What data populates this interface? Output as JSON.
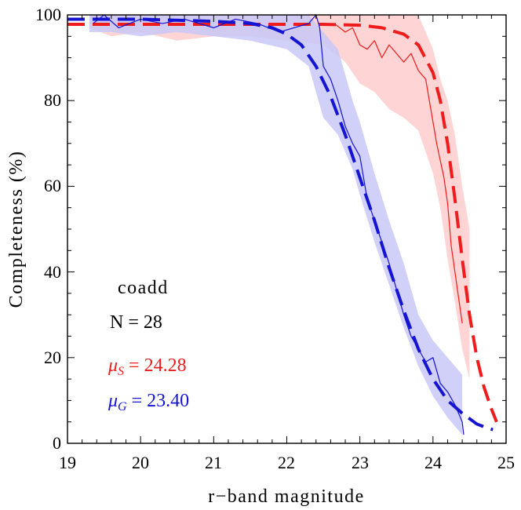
{
  "chart_data": {
    "type": "line",
    "title": "",
    "xlabel": "r−band magnitude",
    "ylabel": "Completeness (%)",
    "xlim": [
      19,
      25
    ],
    "ylim": [
      0,
      100
    ],
    "xticks": [
      "19",
      "20",
      "21",
      "22",
      "23",
      "24",
      "25"
    ],
    "yticks": [
      "0",
      "20",
      "40",
      "60",
      "80",
      "100"
    ],
    "annotations": {
      "sample": "coadd",
      "count": "N = 28",
      "mu_s_symbol": "μ",
      "mu_s_sub": "S",
      "mu_s_value": " = 24.28",
      "mu_g_symbol": "μ",
      "mu_g_sub": "G",
      "mu_g_value": " = 23.40"
    },
    "colors": {
      "stars": "#ee1c1c",
      "galaxies": "#1414d2",
      "stars_band": "#ffcccc",
      "galaxies_band": "#c8c8f8"
    },
    "series": [
      {
        "name": "stars (measured)",
        "style": "thin",
        "color": "#ee1c1c",
        "x": [
          22.65,
          22.8,
          22.9,
          23.0,
          23.1,
          23.2,
          23.3,
          23.4,
          23.5,
          23.6,
          23.7,
          23.8,
          23.9,
          24.0,
          24.05,
          24.1,
          24.15,
          24.2,
          24.25,
          24.3,
          24.35,
          24.4
        ],
        "y": [
          98,
          96,
          97,
          93,
          92,
          94,
          90,
          93,
          91,
          89,
          91,
          87,
          85,
          75,
          70,
          66,
          62,
          56,
          46,
          40,
          34,
          28
        ]
      },
      {
        "name": "stars band",
        "style": "band",
        "color": "#ffcccc",
        "x": [
          19.3,
          19.6,
          20.0,
          20.5,
          21.0,
          21.5,
          22.0,
          22.5,
          22.8,
          23.0,
          23.2,
          23.4,
          23.6,
          23.8,
          24.0,
          24.1,
          24.2,
          24.3,
          24.4,
          24.5
        ],
        "lower": [
          97,
          95,
          96,
          94,
          95,
          95,
          94,
          93,
          89,
          84,
          82,
          78,
          76,
          73,
          63,
          55,
          43,
          33,
          22,
          15
        ],
        "upper": [
          100,
          100,
          100,
          100,
          100,
          100,
          100,
          100,
          100,
          100,
          100,
          100,
          100,
          100,
          92,
          85,
          80,
          72,
          60,
          50
        ]
      },
      {
        "name": "stars fit",
        "style": "dashed",
        "color": "#ee1c1c",
        "x": [
          19.0,
          21.0,
          22.0,
          22.5,
          23.0,
          23.3,
          23.6,
          23.8,
          24.0,
          24.1,
          24.2,
          24.3,
          24.4,
          24.5,
          24.6,
          24.7,
          24.8,
          24.87
        ],
        "y": [
          97.8,
          97.8,
          97.8,
          97.8,
          97.6,
          97.0,
          95.5,
          93.0,
          86.5,
          80.0,
          70.0,
          57.0,
          43.0,
          30.0,
          20.0,
          13.0,
          8.0,
          5.0
        ]
      },
      {
        "name": "galaxies (measured)",
        "style": "thin",
        "color": "#1414d2",
        "x": [
          19.35,
          19.5,
          19.7,
          20.0,
          20.3,
          20.6,
          21.0,
          21.3,
          21.6,
          21.9,
          22.1,
          22.3,
          22.4,
          22.45,
          22.5,
          22.6,
          22.7,
          22.8,
          22.9,
          23.0,
          23.1,
          23.2,
          23.3,
          23.4,
          23.5,
          23.6,
          23.7,
          23.8,
          23.9,
          24.0,
          24.1,
          24.2,
          24.3,
          24.4,
          24.42
        ],
        "y": [
          98,
          100,
          97,
          99,
          98,
          99,
          97,
          99,
          98,
          96,
          97,
          98,
          100,
          97,
          88,
          85,
          80,
          74,
          70,
          67,
          57,
          52,
          47,
          42,
          36,
          30,
          25,
          22,
          19,
          20,
          14,
          12,
          9,
          5,
          2
        ]
      },
      {
        "name": "galaxies band",
        "style": "band",
        "color": "#c8c8f8",
        "x": [
          19.3,
          19.6,
          20.0,
          20.5,
          21.0,
          21.5,
          22.0,
          22.3,
          22.5,
          22.7,
          22.9,
          23.0,
          23.2,
          23.4,
          23.6,
          23.8,
          24.0,
          24.2,
          24.4
        ],
        "lower": [
          96,
          96,
          95,
          96,
          95,
          94,
          92,
          88,
          76,
          72,
          64,
          58,
          47,
          37,
          27,
          18,
          11,
          6,
          2
        ],
        "upper": [
          100,
          100,
          100,
          100,
          100,
          100,
          100,
          100,
          96,
          92,
          80,
          75,
          63,
          52,
          42,
          30,
          24,
          20,
          16
        ]
      },
      {
        "name": "galaxies fit",
        "style": "dashed",
        "color": "#1414d2",
        "x": [
          19.0,
          20.0,
          21.0,
          21.5,
          21.8,
          22.0,
          22.2,
          22.4,
          22.6,
          22.8,
          23.0,
          23.2,
          23.4,
          23.6,
          23.8,
          24.0,
          24.2,
          24.4,
          24.6,
          24.75,
          24.82
        ],
        "y": [
          99,
          99,
          98.5,
          98,
          97,
          95.5,
          93,
          88,
          81,
          72,
          62,
          52,
          41,
          31,
          22,
          15,
          10,
          7,
          4.5,
          3.5,
          3.2
        ]
      }
    ]
  }
}
